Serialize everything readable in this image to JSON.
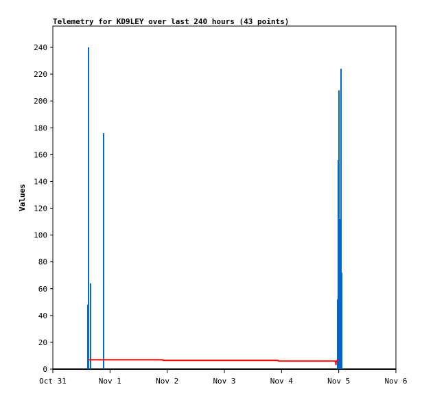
{
  "chart_data": {
    "type": "bar",
    "title": "Telemetry for KD9LEY over last 240 hours (43 points)",
    "ylabel": "Values",
    "xlabel": "",
    "ylim": [
      0,
      255
    ],
    "yticks": [
      0,
      20,
      40,
      60,
      80,
      100,
      120,
      140,
      160,
      180,
      200,
      220,
      240
    ],
    "xticks": [
      "Oct 31",
      "Nov 1",
      "Nov 2",
      "Nov 3",
      "Nov 4",
      "Nov 5",
      "Nov 6"
    ],
    "xlim_days": [
      "Oct 31",
      "Nov 6"
    ],
    "grid": false,
    "series": [
      {
        "type": "bar",
        "color": "#0066cc",
        "points": [
          [
            "Oct 31 14:41",
            48
          ],
          [
            "Oct 31 14:59",
            240
          ],
          [
            "Oct 31 15:50",
            64
          ],
          [
            "Oct 31 21:19",
            176
          ],
          [
            "Nov 4 23:31",
            52
          ],
          [
            "Nov 4 23:48",
            156
          ],
          [
            "Nov 5 00:06",
            208
          ],
          [
            "Nov 5 00:40",
            112
          ],
          [
            "Nov 5 00:58",
            224
          ],
          [
            "Nov 5 01:15",
            72
          ]
        ]
      },
      {
        "type": "line",
        "color": "#ff0000",
        "points": [
          [
            "Oct 31 14:59",
            7
          ],
          [
            "Nov 1 22:05",
            7
          ],
          [
            "Nov 1 22:20",
            6.5
          ],
          [
            "Nov 3 22:28",
            6.5
          ],
          [
            "Nov 3 22:45",
            6
          ],
          [
            "Nov 4 22:39",
            6
          ],
          [
            "Nov 4 22:50",
            3
          ],
          [
            "Nov 4 22:55",
            6
          ],
          [
            "Nov 4 23:48",
            7
          ]
        ]
      }
    ]
  }
}
